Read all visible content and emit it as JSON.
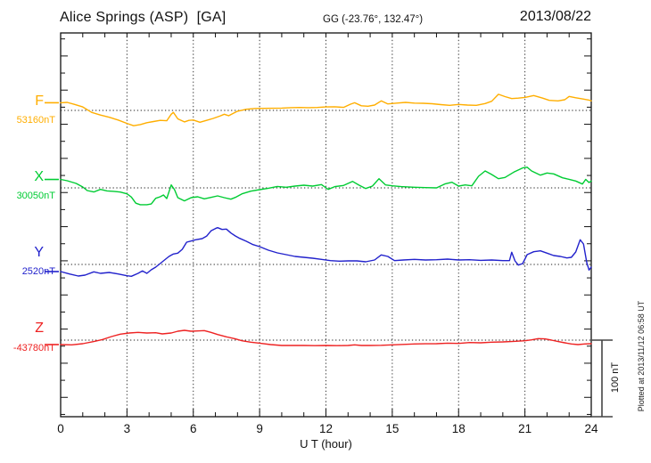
{
  "header": {
    "title": "Alice Springs (ASP)  [GA]",
    "coordinates": "GG (-23.76°, 132.47°)",
    "date": "2013/08/22"
  },
  "x_axis": {
    "label": "U T (hour)",
    "tick_labels": [
      "0",
      "3",
      "6",
      "9",
      "12",
      "15",
      "18",
      "21",
      "24"
    ]
  },
  "scale_bar": {
    "label": "100 nT",
    "value_nT": 100
  },
  "footer_note": "Plotted at 2013/11/12 06:58 UT",
  "chart_data": {
    "type": "line",
    "title": "Alice Springs (ASP) [GA] magnetogram for 2013/08/22",
    "xlabel": "U T (hour)",
    "x_range": [
      0,
      24
    ],
    "x_tick_step": 3,
    "grid": "dotted vertical every 3 h, dotted horizontal baseline per component",
    "y_scale_note": "scale bar = 100 nT",
    "legend_position": "left margin, one colored letter per component",
    "series": [
      {
        "id": "F",
        "label": "F",
        "baseline_label": "53160nT",
        "baseline_nT": 53160,
        "color": "#FFAE00",
        "points": [
          [
            0,
            10
          ],
          [
            0.3,
            10.5
          ],
          [
            0.6,
            8
          ],
          [
            1,
            4.5
          ],
          [
            1.4,
            -2.5
          ],
          [
            1.8,
            -6
          ],
          [
            2.2,
            -9
          ],
          [
            2.6,
            -12.5
          ],
          [
            3,
            -17
          ],
          [
            3.3,
            -20
          ],
          [
            3.6,
            -18.5
          ],
          [
            3.9,
            -16
          ],
          [
            4.2,
            -14.5
          ],
          [
            4.5,
            -13
          ],
          [
            4.8,
            -13.5
          ],
          [
            5,
            -5
          ],
          [
            5.1,
            -2.5
          ],
          [
            5.3,
            -11
          ],
          [
            5.6,
            -15
          ],
          [
            5.8,
            -13
          ],
          [
            6,
            -12.5
          ],
          [
            6.3,
            -15.5
          ],
          [
            6.6,
            -13
          ],
          [
            6.9,
            -10.5
          ],
          [
            7.2,
            -7.5
          ],
          [
            7.4,
            -5
          ],
          [
            7.6,
            -7
          ],
          [
            7.8,
            -4
          ],
          [
            8,
            -1
          ],
          [
            8.4,
            1.5
          ],
          [
            8.8,
            2.5
          ],
          [
            9.2,
            2.7
          ],
          [
            9.6,
            2.8
          ],
          [
            10,
            3
          ],
          [
            10.4,
            3.6
          ],
          [
            10.8,
            3.8
          ],
          [
            11.2,
            3.6
          ],
          [
            11.6,
            3.8
          ],
          [
            12,
            4.5
          ],
          [
            12.4,
            4.8
          ],
          [
            12.8,
            4
          ],
          [
            13.1,
            8
          ],
          [
            13.3,
            10
          ],
          [
            13.6,
            6
          ],
          [
            13.9,
            5.5
          ],
          [
            14.2,
            7
          ],
          [
            14.5,
            12.4
          ],
          [
            14.8,
            8.5
          ],
          [
            15.2,
            9.5
          ],
          [
            15.6,
            10.5
          ],
          [
            16,
            9.5
          ],
          [
            16.4,
            9.3
          ],
          [
            16.8,
            8.7
          ],
          [
            17.2,
            7.5
          ],
          [
            17.6,
            6.6
          ],
          [
            18,
            7.8
          ],
          [
            18.4,
            7
          ],
          [
            18.8,
            6.6
          ],
          [
            19.2,
            9
          ],
          [
            19.5,
            12
          ],
          [
            19.8,
            21
          ],
          [
            20.1,
            18
          ],
          [
            20.4,
            15.5
          ],
          [
            20.7,
            16
          ],
          [
            21,
            17
          ],
          [
            21.4,
            19.4
          ],
          [
            21.8,
            16
          ],
          [
            22.1,
            13.1
          ],
          [
            22.5,
            12.4
          ],
          [
            22.8,
            14
          ],
          [
            23,
            18.2
          ],
          [
            23.3,
            16.5
          ],
          [
            23.6,
            15
          ],
          [
            23.9,
            13.5
          ],
          [
            24,
            12.4
          ]
        ]
      },
      {
        "id": "X",
        "label": "X",
        "baseline_label": "30050nT",
        "baseline_nT": 30050,
        "color": "#00CC33",
        "points": [
          [
            0,
            11
          ],
          [
            0.3,
            9.3
          ],
          [
            0.7,
            5.8
          ],
          [
            1,
            1.2
          ],
          [
            1.2,
            -3.5
          ],
          [
            1.5,
            -5.4
          ],
          [
            1.8,
            -2
          ],
          [
            2.1,
            -4
          ],
          [
            2.4,
            -4.5
          ],
          [
            2.7,
            -5.5
          ],
          [
            3,
            -7.8
          ],
          [
            3.2,
            -12
          ],
          [
            3.4,
            -20
          ],
          [
            3.6,
            -22
          ],
          [
            3.9,
            -22
          ],
          [
            4.1,
            -21
          ],
          [
            4.3,
            -13.6
          ],
          [
            4.5,
            -11.6
          ],
          [
            4.65,
            -9.3
          ],
          [
            4.8,
            -14
          ],
          [
            5,
            3.8
          ],
          [
            5.15,
            -2.3
          ],
          [
            5.3,
            -12.8
          ],
          [
            5.6,
            -17
          ],
          [
            5.9,
            -12.8
          ],
          [
            6.2,
            -11.6
          ],
          [
            6.5,
            -14.3
          ],
          [
            6.8,
            -12.4
          ],
          [
            7.1,
            -10.5
          ],
          [
            7.4,
            -12.8
          ],
          [
            7.7,
            -14.8
          ],
          [
            7.9,
            -12.4
          ],
          [
            8.2,
            -7.8
          ],
          [
            8.6,
            -4.3
          ],
          [
            9,
            -2.3
          ],
          [
            9.4,
            -0.5
          ],
          [
            9.8,
            1.9
          ],
          [
            10.2,
            0.8
          ],
          [
            10.6,
            2.3
          ],
          [
            11,
            3.5
          ],
          [
            11.4,
            2.3
          ],
          [
            11.8,
            4.3
          ],
          [
            12.1,
            -2
          ],
          [
            12.4,
            1.6
          ],
          [
            12.8,
            3.1
          ],
          [
            13.2,
            8.5
          ],
          [
            13.5,
            3.5
          ],
          [
            13.8,
            -0.8
          ],
          [
            14.1,
            2.3
          ],
          [
            14.4,
            12
          ],
          [
            14.7,
            3.8
          ],
          [
            15,
            2.7
          ],
          [
            15.4,
            1.6
          ],
          [
            16,
            0.8
          ],
          [
            16.5,
            0.4
          ],
          [
            17,
            0
          ],
          [
            17.4,
            5.4
          ],
          [
            17.7,
            7.3
          ],
          [
            18,
            2.3
          ],
          [
            18.3,
            3.8
          ],
          [
            18.6,
            2.7
          ],
          [
            18.9,
            15.1
          ],
          [
            19.2,
            22.1
          ],
          [
            19.5,
            17.4
          ],
          [
            19.8,
            12
          ],
          [
            20.1,
            13.6
          ],
          [
            20.5,
            20.6
          ],
          [
            20.9,
            26
          ],
          [
            21.1,
            27
          ],
          [
            21.3,
            22.1
          ],
          [
            21.7,
            16.6
          ],
          [
            22,
            19.4
          ],
          [
            22.3,
            18.2
          ],
          [
            22.7,
            13.1
          ],
          [
            23,
            11.2
          ],
          [
            23.3,
            8.9
          ],
          [
            23.6,
            5
          ],
          [
            23.75,
            11
          ],
          [
            23.9,
            7
          ],
          [
            24,
            8.9
          ]
        ]
      },
      {
        "id": "Y",
        "label": "Y",
        "baseline_label": "2520nT",
        "baseline_nT": 2520,
        "color": "#2222CC",
        "points": [
          [
            0,
            -9.3
          ],
          [
            0.4,
            -12.4
          ],
          [
            0.8,
            -15.1
          ],
          [
            1.1,
            -14
          ],
          [
            1.5,
            -9.7
          ],
          [
            1.8,
            -11.6
          ],
          [
            2.2,
            -10.5
          ],
          [
            2.6,
            -12.4
          ],
          [
            3,
            -14.8
          ],
          [
            3.2,
            -15.5
          ],
          [
            3.5,
            -11.6
          ],
          [
            3.7,
            -8.5
          ],
          [
            3.9,
            -11.6
          ],
          [
            4.1,
            -7
          ],
          [
            4.3,
            -3.5
          ],
          [
            4.5,
            1.2
          ],
          [
            4.7,
            5.8
          ],
          [
            4.9,
            10.5
          ],
          [
            5.1,
            13.6
          ],
          [
            5.3,
            14.8
          ],
          [
            5.5,
            19.8
          ],
          [
            5.7,
            29.1
          ],
          [
            5.9,
            30.6
          ],
          [
            6.1,
            32.2
          ],
          [
            6.4,
            33.7
          ],
          [
            6.6,
            36.9
          ],
          [
            6.8,
            43.8
          ],
          [
            7,
            46.9
          ],
          [
            7.1,
            48
          ],
          [
            7.3,
            45.7
          ],
          [
            7.5,
            46.2
          ],
          [
            7.7,
            41
          ],
          [
            7.9,
            37.2
          ],
          [
            8.1,
            34.1
          ],
          [
            8.4,
            30.2
          ],
          [
            8.7,
            25.9
          ],
          [
            9,
            23.3
          ],
          [
            9.4,
            18.6
          ],
          [
            9.8,
            15.1
          ],
          [
            10.2,
            12.8
          ],
          [
            10.6,
            10.5
          ],
          [
            11,
            9.3
          ],
          [
            11.4,
            8.1
          ],
          [
            11.8,
            6.6
          ],
          [
            12.2,
            5
          ],
          [
            12.6,
            4.3
          ],
          [
            13,
            4.7
          ],
          [
            13.4,
            4.7
          ],
          [
            13.8,
            3.5
          ],
          [
            14.2,
            5.8
          ],
          [
            14.5,
            12.4
          ],
          [
            14.8,
            10.5
          ],
          [
            15.1,
            5
          ],
          [
            15.5,
            5.8
          ],
          [
            16,
            6.6
          ],
          [
            16.5,
            5.8
          ],
          [
            17,
            6.2
          ],
          [
            17.5,
            7
          ],
          [
            18,
            5.8
          ],
          [
            18.5,
            6.2
          ],
          [
            19,
            5.4
          ],
          [
            19.5,
            5.8
          ],
          [
            20,
            5
          ],
          [
            20.3,
            5
          ],
          [
            20.4,
            15.9
          ],
          [
            20.55,
            4.7
          ],
          [
            20.7,
            -0.8
          ],
          [
            20.9,
            1.2
          ],
          [
            21.1,
            12.8
          ],
          [
            21.4,
            16.6
          ],
          [
            21.7,
            17.8
          ],
          [
            22,
            14.8
          ],
          [
            22.3,
            11.6
          ],
          [
            22.6,
            10.5
          ],
          [
            22.9,
            8.5
          ],
          [
            23.1,
            9.3
          ],
          [
            23.3,
            16.3
          ],
          [
            23.5,
            32.2
          ],
          [
            23.65,
            26.7
          ],
          [
            23.8,
            2.3
          ],
          [
            23.9,
            -7.3
          ],
          [
            24,
            -3.5
          ]
        ]
      },
      {
        "id": "Z",
        "label": "Z",
        "baseline_label": "-43780nT",
        "baseline_nT": -43780,
        "color": "#EE2222",
        "points": [
          [
            0,
            -5.8
          ],
          [
            0.5,
            -6.2
          ],
          [
            1,
            -4.7
          ],
          [
            1.5,
            -1.9
          ],
          [
            1.9,
            0.8
          ],
          [
            2.3,
            4.7
          ],
          [
            2.7,
            7.8
          ],
          [
            3.1,
            9.3
          ],
          [
            3.5,
            10.1
          ],
          [
            3.9,
            9.3
          ],
          [
            4.3,
            9.7
          ],
          [
            4.6,
            8.1
          ],
          [
            5,
            9.3
          ],
          [
            5.3,
            11.6
          ],
          [
            5.6,
            12.8
          ],
          [
            5.9,
            11.6
          ],
          [
            6.2,
            12
          ],
          [
            6.5,
            12.4
          ],
          [
            6.8,
            10.1
          ],
          [
            7.1,
            7.3
          ],
          [
            7.5,
            4.3
          ],
          [
            7.9,
            1.6
          ],
          [
            8.2,
            -0.8
          ],
          [
            8.6,
            -2.7
          ],
          [
            9,
            -3.9
          ],
          [
            9.5,
            -5.8
          ],
          [
            10,
            -7
          ],
          [
            10.5,
            -7
          ],
          [
            11,
            -7
          ],
          [
            11.5,
            -7.2
          ],
          [
            12,
            -7
          ],
          [
            12.5,
            -7.2
          ],
          [
            13,
            -7
          ],
          [
            13.3,
            -6.2
          ],
          [
            13.6,
            -7
          ],
          [
            14,
            -7
          ],
          [
            14.5,
            -6.8
          ],
          [
            15,
            -6.2
          ],
          [
            15.5,
            -5.6
          ],
          [
            16,
            -5
          ],
          [
            16.5,
            -4.8
          ],
          [
            17,
            -4.7
          ],
          [
            17.5,
            -3.9
          ],
          [
            18,
            -4.3
          ],
          [
            18.5,
            -3.1
          ],
          [
            19,
            -3.5
          ],
          [
            19.5,
            -2.7
          ],
          [
            20,
            -2.3
          ],
          [
            20.5,
            -1.6
          ],
          [
            21,
            -0.8
          ],
          [
            21.3,
            0.4
          ],
          [
            21.6,
            2
          ],
          [
            21.9,
            1.6
          ],
          [
            22.2,
            0
          ],
          [
            22.5,
            -1.9
          ],
          [
            22.8,
            -3.5
          ],
          [
            23.1,
            -5
          ],
          [
            23.4,
            -5.8
          ],
          [
            23.7,
            -5
          ],
          [
            24,
            -4.7
          ]
        ]
      }
    ]
  }
}
